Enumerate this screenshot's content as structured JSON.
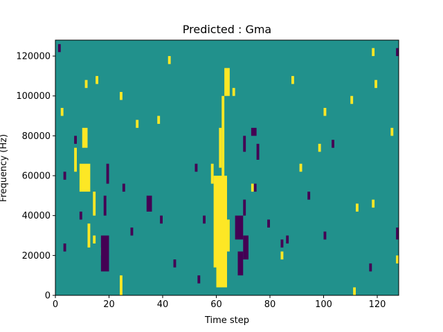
{
  "chart_data": {
    "type": "heatmap",
    "title": "Predicted : Gma",
    "xlabel": "Time step",
    "ylabel": "Frequency (Hz)",
    "xlim": [
      0,
      128
    ],
    "ylim": [
      0,
      128000
    ],
    "xticks": [
      0,
      20,
      40,
      60,
      80,
      100,
      120
    ],
    "yticks": [
      0,
      20000,
      40000,
      60000,
      80000,
      100000,
      120000
    ],
    "grid": false,
    "n_time_steps": 128,
    "n_frequency_bins": 64,
    "colormap": {
      "low": "#440154",
      "mid": "#21918c",
      "high": "#fde725"
    },
    "background_value": "mid",
    "high_segments": [
      {
        "t": [
          24,
          25
        ],
        "f": [
          0,
          10000
        ]
      },
      {
        "t": [
          9,
          13
        ],
        "f": [
          52000,
          66000
        ]
      },
      {
        "t": [
          12,
          13
        ],
        "f": [
          24000,
          36000
        ]
      },
      {
        "t": [
          14,
          15
        ],
        "f": [
          40000,
          52000
        ]
      },
      {
        "t": [
          58,
          59
        ],
        "f": [
          56000,
          66000
        ]
      },
      {
        "t": [
          59,
          60
        ],
        "f": [
          14000,
          60000
        ]
      },
      {
        "t": [
          60,
          64
        ],
        "f": [
          4000,
          60000
        ]
      },
      {
        "t": [
          61,
          62
        ],
        "f": [
          64000,
          84000
        ]
      },
      {
        "t": [
          62,
          63
        ],
        "f": [
          60000,
          100000
        ]
      },
      {
        "t": [
          64,
          65
        ],
        "f": [
          22000,
          38000
        ]
      },
      {
        "t": [
          63,
          65
        ],
        "f": [
          100000,
          114000
        ]
      },
      {
        "t": [
          10,
          12
        ],
        "f": [
          74000,
          84000
        ]
      },
      {
        "t": [
          7,
          8
        ],
        "f": [
          62000,
          74000
        ]
      },
      {
        "t": [
          14,
          15
        ],
        "f": [
          26000,
          30000
        ]
      },
      {
        "t": [
          17,
          18
        ],
        "f": [
          20000,
          24000
        ]
      },
      {
        "t": [
          2,
          3
        ],
        "f": [
          90000,
          94000
        ]
      },
      {
        "t": [
          11,
          12
        ],
        "f": [
          104000,
          108000
        ]
      },
      {
        "t": [
          15,
          16
        ],
        "f": [
          106000,
          110000
        ]
      },
      {
        "t": [
          24,
          25
        ],
        "f": [
          98000,
          102000
        ]
      },
      {
        "t": [
          30,
          31
        ],
        "f": [
          84000,
          88000
        ]
      },
      {
        "t": [
          38,
          39
        ],
        "f": [
          86000,
          90000
        ]
      },
      {
        "t": [
          42,
          43
        ],
        "f": [
          116000,
          120000
        ]
      },
      {
        "t": [
          66,
          67
        ],
        "f": [
          100000,
          104000
        ]
      },
      {
        "t": [
          73,
          74
        ],
        "f": [
          52000,
          56000
        ]
      },
      {
        "t": [
          84,
          85
        ],
        "f": [
          18000,
          22000
        ]
      },
      {
        "t": [
          88,
          89
        ],
        "f": [
          106000,
          110000
        ]
      },
      {
        "t": [
          91,
          92
        ],
        "f": [
          62000,
          66000
        ]
      },
      {
        "t": [
          98,
          99
        ],
        "f": [
          72000,
          76000
        ]
      },
      {
        "t": [
          100,
          101
        ],
        "f": [
          90000,
          94000
        ]
      },
      {
        "t": [
          110,
          111
        ],
        "f": [
          96000,
          100000
        ]
      },
      {
        "t": [
          112,
          113
        ],
        "f": [
          42000,
          46000
        ]
      },
      {
        "t": [
          118,
          119
        ],
        "f": [
          44000,
          48000
        ]
      },
      {
        "t": [
          119,
          120
        ],
        "f": [
          104000,
          108000
        ]
      },
      {
        "t": [
          125,
          126
        ],
        "f": [
          80000,
          84000
        ]
      },
      {
        "t": [
          127,
          128
        ],
        "f": [
          16000,
          20000
        ]
      },
      {
        "t": [
          118,
          119
        ],
        "f": [
          120000,
          124000
        ]
      },
      {
        "t": [
          111,
          112
        ],
        "f": [
          0,
          4000
        ]
      }
    ],
    "low_segments": [
      {
        "t": [
          1,
          2
        ],
        "f": [
          122000,
          126000
        ]
      },
      {
        "t": [
          3,
          4
        ],
        "f": [
          58000,
          62000
        ]
      },
      {
        "t": [
          3,
          4
        ],
        "f": [
          22000,
          26000
        ]
      },
      {
        "t": [
          7,
          8
        ],
        "f": [
          76000,
          80000
        ]
      },
      {
        "t": [
          9,
          10
        ],
        "f": [
          38000,
          42000
        ]
      },
      {
        "t": [
          17,
          20
        ],
        "f": [
          12000,
          30000
        ]
      },
      {
        "t": [
          19,
          20
        ],
        "f": [
          56000,
          66000
        ]
      },
      {
        "t": [
          18,
          19
        ],
        "f": [
          40000,
          50000
        ]
      },
      {
        "t": [
          25,
          26
        ],
        "f": [
          52000,
          56000
        ]
      },
      {
        "t": [
          28,
          29
        ],
        "f": [
          30000,
          34000
        ]
      },
      {
        "t": [
          34,
          36
        ],
        "f": [
          42000,
          50000
        ]
      },
      {
        "t": [
          44,
          45
        ],
        "f": [
          14000,
          18000
        ]
      },
      {
        "t": [
          52,
          53
        ],
        "f": [
          62000,
          66000
        ]
      },
      {
        "t": [
          53,
          54
        ],
        "f": [
          6000,
          10000
        ]
      },
      {
        "t": [
          55,
          56
        ],
        "f": [
          36000,
          40000
        ]
      },
      {
        "t": [
          67,
          70
        ],
        "f": [
          28000,
          40000
        ]
      },
      {
        "t": [
          68,
          70
        ],
        "f": [
          10000,
          22000
        ]
      },
      {
        "t": [
          70,
          72
        ],
        "f": [
          18000,
          30000
        ]
      },
      {
        "t": [
          70,
          71
        ],
        "f": [
          40000,
          48000
        ]
      },
      {
        "t": [
          70,
          71
        ],
        "f": [
          72000,
          80000
        ]
      },
      {
        "t": [
          74,
          75
        ],
        "f": [
          52000,
          56000
        ]
      },
      {
        "t": [
          75,
          76
        ],
        "f": [
          68000,
          76000
        ]
      },
      {
        "t": [
          73,
          75
        ],
        "f": [
          80000,
          84000
        ]
      },
      {
        "t": [
          79,
          80
        ],
        "f": [
          34000,
          38000
        ]
      },
      {
        "t": [
          84,
          85
        ],
        "f": [
          24000,
          28000
        ]
      },
      {
        "t": [
          86,
          87
        ],
        "f": [
          26000,
          30000
        ]
      },
      {
        "t": [
          94,
          95
        ],
        "f": [
          48000,
          52000
        ]
      },
      {
        "t": [
          100,
          101
        ],
        "f": [
          28000,
          32000
        ]
      },
      {
        "t": [
          117,
          118
        ],
        "f": [
          12000,
          16000
        ]
      },
      {
        "t": [
          127,
          128
        ],
        "f": [
          28000,
          34000
        ]
      },
      {
        "t": [
          127,
          128
        ],
        "f": [
          120000,
          124000
        ]
      },
      {
        "t": [
          103,
          104
        ],
        "f": [
          74000,
          78000
        ]
      },
      {
        "t": [
          39,
          40
        ],
        "f": [
          36000,
          40000
        ]
      }
    ]
  }
}
